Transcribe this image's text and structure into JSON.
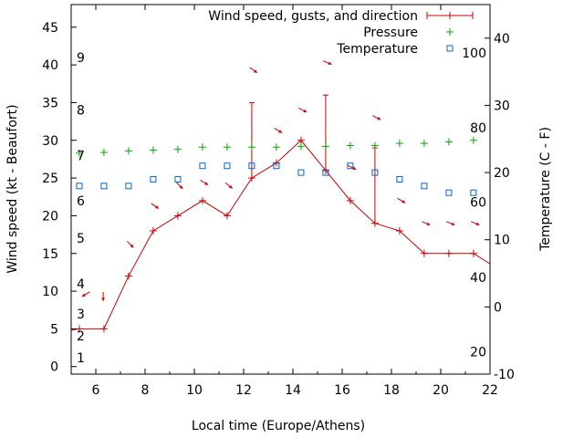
{
  "chart_data": {
    "type": "line",
    "xlabel": "Local time (Europe/Athens)",
    "ylabel": "Wind speed (kt - Beaufort)",
    "y2label": "Temperature (C - F)",
    "xlim": [
      5,
      22
    ],
    "ylim": [
      -1,
      48
    ],
    "y2lim": [
      -10,
      45
    ],
    "x_ticks": [
      "6",
      "8",
      "10",
      "12",
      "14",
      "16",
      "18",
      "20",
      "22"
    ],
    "y_ticks": [
      "0",
      "5",
      "10",
      "15",
      "20",
      "25",
      "30",
      "35",
      "40",
      "45"
    ],
    "y2_ticks": [
      "-10",
      "0",
      "10",
      "20",
      "30",
      "40"
    ],
    "beaufort_labels": [
      {
        "label": "1",
        "y": 1.2
      },
      {
        "label": "2",
        "y": 4.1
      },
      {
        "label": "3",
        "y": 7.0
      },
      {
        "label": "4",
        "y": 11.0
      },
      {
        "label": "5",
        "y": 17.0
      },
      {
        "label": "6",
        "y": 22.0
      },
      {
        "label": "7",
        "y": 28.0
      },
      {
        "label": "8",
        "y": 34.0
      },
      {
        "label": "9",
        "y": 41.0
      }
    ],
    "fahrenheit_labels": [
      {
        "label": "20",
        "y2": -6.7
      },
      {
        "label": "40",
        "y2": 4.4
      },
      {
        "label": "60",
        "y2": 15.6
      },
      {
        "label": "80",
        "y2": 26.7
      },
      {
        "label": "100",
        "y2": 37.8
      }
    ],
    "legend": {
      "position": "top-right",
      "entries": [
        "Wind speed, gusts, and direction",
        "Pressure",
        "Temperature"
      ]
    },
    "series": [
      {
        "name": "Wind speed, gusts, and direction",
        "color": "#cc0000",
        "x": [
          4.4,
          5.33,
          6.33,
          7.33,
          8.33,
          9.33,
          10.33,
          11.33,
          12.33,
          13.33,
          14.33,
          15.33,
          16.33,
          17.33,
          18.33,
          19.33,
          20.33,
          21.33,
          22.3
        ],
        "values": [
          4.5,
          5,
          5,
          12,
          18,
          20,
          22,
          20,
          25,
          27,
          30,
          26,
          22,
          19,
          18,
          15,
          15,
          15,
          13
        ],
        "gusts": [
          null,
          null,
          null,
          null,
          null,
          null,
          null,
          null,
          35,
          null,
          null,
          36,
          null,
          29,
          null,
          null,
          null,
          null,
          null
        ],
        "direction_arrows": [
          {
            "x": 5.6,
            "y": 9.6,
            "dx": -1,
            "dy": 0.6
          },
          {
            "x": 6.3,
            "y": 9.3,
            "dx": 0,
            "dy": 1
          },
          {
            "x": 7.4,
            "y": 16.2,
            "dx": 1,
            "dy": 1
          },
          {
            "x": 8.4,
            "y": 21.3,
            "dx": 1,
            "dy": 0.7
          },
          {
            "x": 9.4,
            "y": 24.0,
            "dx": 1,
            "dy": 1
          },
          {
            "x": 10.4,
            "y": 24.4,
            "dx": 1,
            "dy": 0.6
          },
          {
            "x": 11.4,
            "y": 24.0,
            "dx": 1,
            "dy": 0.8
          },
          {
            "x": 12.4,
            "y": 39.3,
            "dx": 1,
            "dy": 0.7
          },
          {
            "x": 13.4,
            "y": 31.3,
            "dx": 1,
            "dy": 0.6
          },
          {
            "x": 14.4,
            "y": 34.0,
            "dx": 1,
            "dy": 0.5
          },
          {
            "x": 15.4,
            "y": 40.3,
            "dx": 1,
            "dy": 0.4
          },
          {
            "x": 16.4,
            "y": 26.4,
            "dx": 1,
            "dy": 0.5
          },
          {
            "x": 17.4,
            "y": 33.0,
            "dx": 1,
            "dy": 0.5
          },
          {
            "x": 18.4,
            "y": 22.0,
            "dx": 1,
            "dy": 0.6
          },
          {
            "x": 19.4,
            "y": 19.0,
            "dx": 1,
            "dy": 0.4
          },
          {
            "x": 20.4,
            "y": 19.0,
            "dx": 1,
            "dy": 0.4
          },
          {
            "x": 21.4,
            "y": 19.0,
            "dx": 1,
            "dy": 0.4
          }
        ]
      },
      {
        "name": "Pressure",
        "color": "#00aa00",
        "axis": "left",
        "x": [
          5.33,
          6.33,
          7.33,
          8.33,
          9.33,
          10.33,
          11.33,
          12.33,
          13.33,
          14.33,
          15.33,
          16.33,
          17.33,
          18.33,
          19.33,
          20.33,
          21.33
        ],
        "values": [
          28.3,
          28.4,
          28.6,
          28.7,
          28.8,
          29.1,
          29.1,
          29.1,
          29.1,
          29.2,
          29.2,
          29.3,
          29.3,
          29.6,
          29.6,
          29.8,
          30.0
        ]
      },
      {
        "name": "Temperature",
        "color": "#0066cc",
        "axis": "right",
        "x": [
          5.33,
          6.33,
          7.33,
          8.33,
          9.33,
          10.33,
          11.33,
          12.33,
          13.33,
          14.33,
          15.33,
          16.33,
          17.33,
          18.33,
          19.33,
          20.33,
          21.33
        ],
        "values": [
          18,
          18,
          18,
          19,
          19,
          21,
          21,
          21,
          21,
          20,
          20,
          21,
          20,
          19,
          18,
          17,
          17
        ]
      }
    ]
  }
}
